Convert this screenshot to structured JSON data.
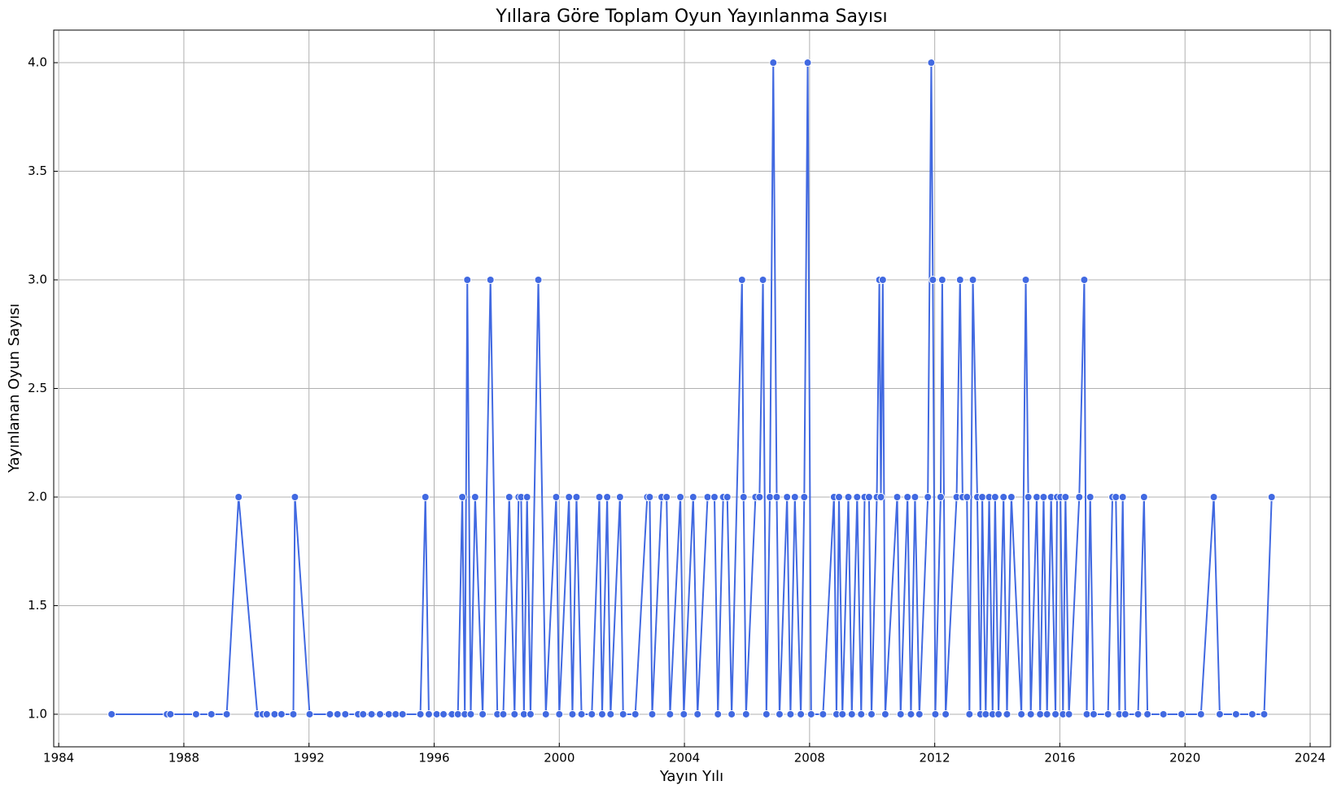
{
  "chart_data": {
    "type": "line",
    "title": "Yıllara Göre Toplam Oyun Yayınlanma Sayısı",
    "x_label": "Yayın Yılı",
    "y_label": "Yayınlanan Oyun Sayısı",
    "color": "#4169e1",
    "grid": true,
    "xlim": [
      1983.84,
      2024.65
    ],
    "ylim": [
      0.85,
      4.15
    ],
    "xticks": [
      1984,
      1988,
      1992,
      1996,
      2000,
      2004,
      2008,
      2012,
      2016,
      2020,
      2024
    ],
    "yticks": [
      {
        "value": 1.0,
        "label": "1.0"
      },
      1.5,
      {
        "value": 2.0,
        "label": "2.0"
      },
      2.5,
      {
        "value": 3.0,
        "label": "3.0"
      },
      3.5,
      {
        "value": 4.0,
        "label": "4.0"
      }
    ],
    "x": [
      1985.69,
      1987.46,
      1987.57,
      1988.39,
      1988.88,
      1989.37,
      1989.75,
      1990.35,
      1990.52,
      1990.65,
      1990.9,
      1991.12,
      1991.5,
      1991.55,
      1992.02,
      1992.67,
      1992.91,
      1993.16,
      1993.57,
      1993.73,
      1994.0,
      1994.27,
      1994.55,
      1994.77,
      1994.99,
      1995.56,
      1995.72,
      1995.83,
      1996.08,
      1996.3,
      1996.57,
      1996.76,
      1996.9,
      1996.98,
      1997.06,
      1997.17,
      1997.31,
      1997.55,
      1997.8,
      1998.02,
      1998.21,
      1998.4,
      1998.57,
      1998.7,
      1998.78,
      1998.87,
      1998.97,
      1999.08,
      1999.33,
      1999.57,
      1999.9,
      2000.0,
      2000.31,
      2000.42,
      2000.55,
      2000.71,
      2001.04,
      2001.28,
      2001.37,
      2001.53,
      2001.64,
      2001.94,
      2002.04,
      2002.43,
      2002.81,
      2002.89,
      2002.97,
      2003.27,
      2003.43,
      2003.54,
      2003.87,
      2003.98,
      2004.28,
      2004.42,
      2004.74,
      2004.96,
      2005.07,
      2005.24,
      2005.37,
      2005.51,
      2005.84,
      2005.89,
      2005.97,
      2006.27,
      2006.4,
      2006.51,
      2006.62,
      2006.73,
      2006.84,
      2006.95,
      2007.04,
      2007.28,
      2007.39,
      2007.53,
      2007.72,
      2007.83,
      2007.94,
      2008.05,
      2008.43,
      2008.78,
      2008.86,
      2008.94,
      2009.05,
      2009.24,
      2009.35,
      2009.52,
      2009.65,
      2009.76,
      2009.9,
      2009.98,
      2010.15,
      2010.23,
      2010.28,
      2010.34,
      2010.42,
      2010.8,
      2010.91,
      2011.13,
      2011.24,
      2011.37,
      2011.51,
      2011.78,
      2011.89,
      2011.94,
      2012.02,
      2012.19,
      2012.24,
      2012.35,
      2012.7,
      2012.81,
      2012.89,
      2013.03,
      2013.11,
      2013.22,
      2013.36,
      2013.46,
      2013.52,
      2013.63,
      2013.74,
      2013.85,
      2013.93,
      2014.04,
      2014.2,
      2014.31,
      2014.45,
      2014.77,
      2014.91,
      2014.99,
      2015.07,
      2015.26,
      2015.37,
      2015.48,
      2015.59,
      2015.72,
      2015.86,
      2015.91,
      2016.02,
      2016.1,
      2016.18,
      2016.29,
      2016.62,
      2016.78,
      2016.86,
      2016.97,
      2017.08,
      2017.54,
      2017.68,
      2017.79,
      2017.9,
      2018.01,
      2018.09,
      2018.5,
      2018.69,
      2018.8,
      2019.31,
      2019.89,
      2020.51,
      2020.92,
      2021.11,
      2021.63,
      2022.15,
      2022.53,
      2022.77
    ],
    "values": [
      1,
      1,
      1,
      1,
      1,
      1,
      2,
      1,
      1,
      1,
      1,
      1,
      1,
      2,
      1,
      1,
      1,
      1,
      1,
      1,
      1,
      1,
      1,
      1,
      1,
      1,
      2,
      1,
      1,
      1,
      1,
      1,
      2,
      1,
      3,
      1,
      2,
      1,
      3,
      1,
      1,
      2,
      1,
      2,
      2,
      1,
      2,
      1,
      3,
      1,
      2,
      1,
      2,
      1,
      2,
      1,
      1,
      2,
      1,
      2,
      1,
      2,
      1,
      1,
      2,
      2,
      1,
      2,
      2,
      1,
      2,
      1,
      2,
      1,
      2,
      2,
      1,
      2,
      2,
      1,
      3,
      2,
      1,
      2,
      2,
      3,
      1,
      2,
      4,
      2,
      1,
      2,
      1,
      2,
      1,
      2,
      4,
      1,
      1,
      2,
      1,
      2,
      1,
      2,
      1,
      2,
      1,
      2,
      2,
      1,
      2,
      3,
      2,
      3,
      1,
      2,
      1,
      2,
      1,
      2,
      1,
      2,
      4,
      3,
      1,
      2,
      3,
      1,
      2,
      3,
      2,
      2,
      1,
      3,
      2,
      1,
      2,
      1,
      2,
      1,
      2,
      1,
      2,
      1,
      2,
      1,
      3,
      2,
      1,
      2,
      1,
      2,
      1,
      2,
      1,
      2,
      2,
      1,
      2,
      1,
      2,
      3,
      1,
      2,
      1,
      1,
      2,
      2,
      1,
      2,
      1,
      1,
      2,
      1,
      1,
      1,
      1,
      2,
      1,
      1,
      1,
      1,
      2
    ]
  }
}
